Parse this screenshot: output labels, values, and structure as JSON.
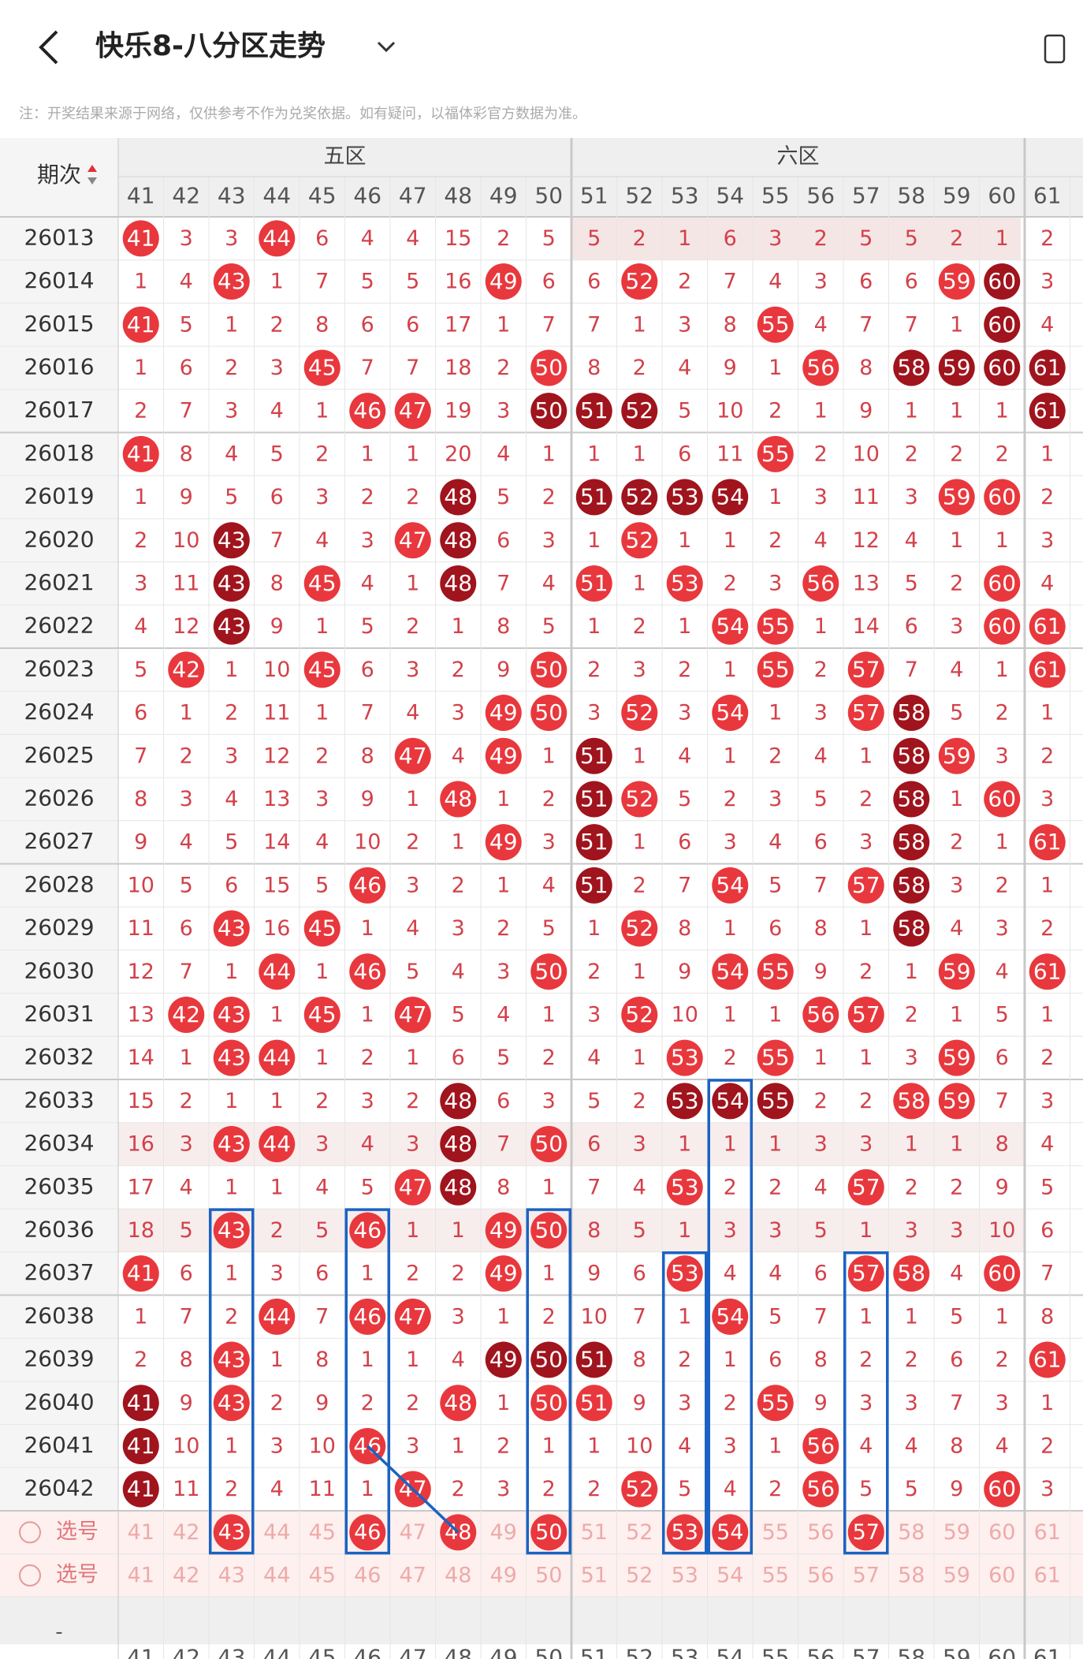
{
  "header": {
    "title": "快乐8-八分区走势",
    "note": "注：开奖结果来源于网络，仅供参考不作为兑奖依据。如有疑问，以福体彩官方数据为准。"
  },
  "table": {
    "period_label": "期次",
    "zones": [
      "五区",
      "六区"
    ],
    "columns": [
      41,
      42,
      43,
      44,
      45,
      46,
      47,
      48,
      49,
      50,
      51,
      52,
      53,
      54,
      55,
      56,
      57,
      58,
      59,
      60,
      61
    ],
    "rows": [
      {
        "period": "26013",
        "values": [
          41,
          3,
          3,
          44,
          6,
          4,
          4,
          15,
          2,
          5,
          5,
          2,
          1,
          6,
          3,
          2,
          5,
          5,
          2,
          1,
          2
        ],
        "dark": []
      },
      {
        "period": "26014",
        "values": [
          1,
          4,
          43,
          1,
          7,
          5,
          5,
          16,
          49,
          6,
          6,
          52,
          2,
          7,
          4,
          3,
          6,
          6,
          59,
          60,
          3
        ],
        "dark": [
          60
        ]
      },
      {
        "period": "26015",
        "values": [
          41,
          5,
          1,
          2,
          8,
          6,
          6,
          17,
          1,
          7,
          7,
          1,
          3,
          8,
          55,
          4,
          7,
          7,
          1,
          60,
          4
        ],
        "dark": [
          60
        ]
      },
      {
        "period": "26016",
        "values": [
          1,
          6,
          2,
          3,
          45,
          7,
          7,
          18,
          2,
          50,
          8,
          2,
          4,
          9,
          1,
          56,
          8,
          58,
          59,
          60,
          61
        ],
        "dark": [
          58,
          59,
          60,
          61
        ]
      },
      {
        "period": "26017",
        "values": [
          2,
          7,
          3,
          4,
          1,
          46,
          47,
          19,
          3,
          50,
          51,
          52,
          5,
          10,
          2,
          1,
          9,
          1,
          1,
          1,
          61
        ],
        "dark": [
          50,
          51,
          52,
          61
        ]
      },
      {
        "period": "26018",
        "values": [
          41,
          8,
          4,
          5,
          2,
          1,
          1,
          20,
          4,
          1,
          1,
          1,
          6,
          11,
          55,
          2,
          10,
          2,
          2,
          2,
          1
        ],
        "dark": []
      },
      {
        "period": "26019",
        "values": [
          1,
          9,
          5,
          6,
          3,
          2,
          2,
          48,
          5,
          2,
          51,
          52,
          53,
          54,
          1,
          3,
          11,
          3,
          59,
          60,
          2
        ],
        "dark": [
          48,
          51,
          52,
          53,
          54
        ]
      },
      {
        "period": "26020",
        "values": [
          2,
          10,
          43,
          7,
          4,
          3,
          47,
          48,
          6,
          3,
          1,
          52,
          1,
          1,
          2,
          4,
          12,
          4,
          1,
          1,
          3
        ],
        "dark": [
          43,
          48
        ]
      },
      {
        "period": "26021",
        "values": [
          3,
          11,
          43,
          8,
          45,
          4,
          1,
          48,
          7,
          4,
          51,
          1,
          53,
          2,
          3,
          56,
          13,
          5,
          2,
          60,
          4
        ],
        "dark": [
          43,
          48
        ]
      },
      {
        "period": "26022",
        "values": [
          4,
          12,
          43,
          9,
          1,
          5,
          2,
          1,
          8,
          5,
          1,
          2,
          1,
          54,
          55,
          1,
          14,
          6,
          3,
          60,
          61
        ],
        "dark": [
          43
        ]
      },
      {
        "period": "26023",
        "values": [
          5,
          42,
          1,
          10,
          45,
          6,
          3,
          2,
          9,
          50,
          2,
          3,
          2,
          1,
          55,
          2,
          57,
          7,
          4,
          1,
          61
        ],
        "dark": []
      },
      {
        "period": "26024",
        "values": [
          6,
          1,
          2,
          11,
          1,
          7,
          4,
          3,
          49,
          50,
          3,
          52,
          3,
          54,
          1,
          3,
          57,
          58,
          5,
          2,
          1
        ],
        "dark": [
          58
        ]
      },
      {
        "period": "26025",
        "values": [
          7,
          2,
          3,
          12,
          2,
          8,
          47,
          4,
          49,
          1,
          51,
          1,
          4,
          1,
          2,
          4,
          1,
          58,
          59,
          3,
          2
        ],
        "dark": [
          51,
          58
        ]
      },
      {
        "period": "26026",
        "values": [
          8,
          3,
          4,
          13,
          3,
          9,
          1,
          48,
          1,
          2,
          51,
          52,
          5,
          2,
          3,
          5,
          2,
          58,
          1,
          60,
          3
        ],
        "dark": [
          51,
          58
        ]
      },
      {
        "period": "26027",
        "values": [
          9,
          4,
          5,
          14,
          4,
          10,
          2,
          1,
          49,
          3,
          51,
          1,
          6,
          3,
          4,
          6,
          3,
          58,
          2,
          1,
          61
        ],
        "dark": [
          51,
          58
        ]
      },
      {
        "period": "26028",
        "values": [
          10,
          5,
          6,
          15,
          5,
          46,
          3,
          2,
          1,
          4,
          51,
          2,
          7,
          54,
          5,
          7,
          57,
          58,
          3,
          2,
          1
        ],
        "dark": [
          51,
          58
        ]
      },
      {
        "period": "26029",
        "values": [
          11,
          6,
          43,
          16,
          45,
          1,
          4,
          3,
          2,
          5,
          1,
          52,
          8,
          1,
          6,
          8,
          1,
          58,
          4,
          3,
          2
        ],
        "dark": [
          58
        ]
      },
      {
        "period": "26030",
        "values": [
          12,
          7,
          1,
          44,
          1,
          46,
          5,
          4,
          3,
          50,
          2,
          1,
          9,
          54,
          55,
          9,
          2,
          1,
          59,
          4,
          61
        ],
        "dark": []
      },
      {
        "period": "26031",
        "values": [
          13,
          42,
          43,
          1,
          45,
          1,
          47,
          5,
          4,
          1,
          3,
          52,
          10,
          1,
          1,
          56,
          57,
          2,
          1,
          5,
          1
        ],
        "dark": []
      },
      {
        "period": "26032",
        "values": [
          14,
          1,
          43,
          44,
          1,
          2,
          1,
          6,
          5,
          2,
          4,
          1,
          53,
          2,
          55,
          1,
          1,
          3,
          59,
          6,
          2
        ],
        "dark": []
      },
      {
        "period": "26033",
        "values": [
          15,
          2,
          1,
          1,
          2,
          3,
          2,
          48,
          6,
          3,
          5,
          2,
          53,
          54,
          55,
          2,
          2,
          58,
          59,
          7,
          3
        ],
        "dark": [
          48,
          53,
          54,
          55
        ]
      },
      {
        "period": "26034",
        "values": [
          16,
          3,
          43,
          44,
          3,
          4,
          3,
          48,
          7,
          50,
          6,
          3,
          1,
          1,
          1,
          3,
          3,
          1,
          1,
          8,
          4
        ],
        "dark": [
          48
        ]
      },
      {
        "period": "26035",
        "values": [
          17,
          4,
          1,
          1,
          4,
          5,
          47,
          48,
          8,
          1,
          7,
          4,
          53,
          2,
          2,
          4,
          57,
          2,
          2,
          9,
          5
        ],
        "dark": [
          48
        ]
      },
      {
        "period": "26036",
        "values": [
          18,
          5,
          43,
          2,
          5,
          46,
          1,
          1,
          49,
          50,
          8,
          5,
          1,
          3,
          3,
          5,
          1,
          3,
          3,
          10,
          6
        ],
        "dark": []
      },
      {
        "period": "26037",
        "values": [
          41,
          6,
          1,
          3,
          6,
          1,
          2,
          2,
          49,
          1,
          9,
          6,
          53,
          4,
          4,
          6,
          57,
          58,
          4,
          60,
          7
        ],
        "dark": []
      },
      {
        "period": "26038",
        "values": [
          1,
          7,
          2,
          44,
          7,
          46,
          47,
          3,
          1,
          2,
          10,
          7,
          1,
          54,
          5,
          7,
          1,
          1,
          5,
          1,
          8
        ],
        "dark": []
      },
      {
        "period": "26039",
        "values": [
          2,
          8,
          43,
          1,
          8,
          1,
          1,
          4,
          49,
          50,
          51,
          8,
          2,
          1,
          6,
          8,
          2,
          2,
          6,
          2,
          61
        ],
        "dark": [
          49,
          50,
          51
        ]
      },
      {
        "period": "26040",
        "values": [
          41,
          9,
          43,
          2,
          9,
          2,
          2,
          48,
          1,
          50,
          51,
          9,
          3,
          2,
          55,
          9,
          3,
          3,
          7,
          3,
          1
        ],
        "dark": [
          41
        ]
      },
      {
        "period": "26041",
        "values": [
          41,
          10,
          1,
          3,
          10,
          46,
          3,
          1,
          2,
          1,
          1,
          10,
          4,
          3,
          1,
          56,
          4,
          4,
          8,
          4,
          2
        ],
        "dark": [
          41
        ]
      },
      {
        "period": "26042",
        "values": [
          41,
          11,
          2,
          4,
          11,
          1,
          47,
          2,
          3,
          2,
          2,
          52,
          5,
          4,
          2,
          56,
          5,
          5,
          9,
          60,
          3
        ],
        "dark": [
          41
        ]
      }
    ],
    "pick_label": "选号",
    "picked": [
      43,
      46,
      48,
      50,
      53,
      54,
      57
    ]
  },
  "footer_mark": "-"
}
